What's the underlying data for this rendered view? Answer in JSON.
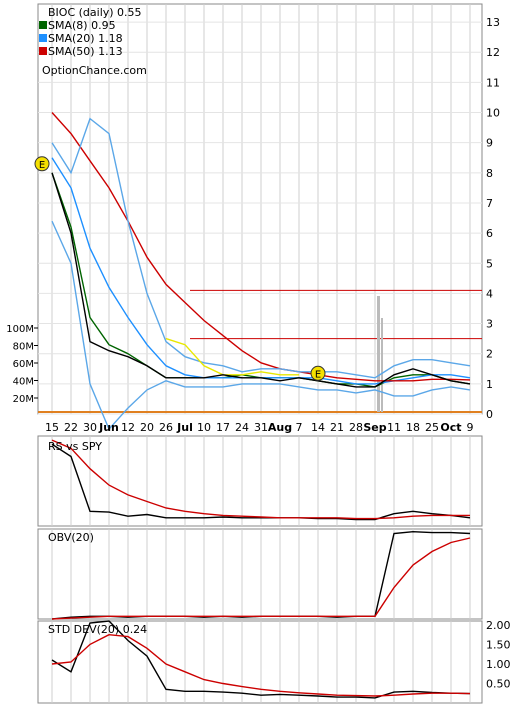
{
  "chart_data": [
    {
      "type": "line",
      "panel": "price",
      "legend_position": "top-left",
      "y_scale": "linear",
      "ylim": [
        0,
        13.6
      ],
      "grid": true,
      "title": "BIOC (daily) 0.55",
      "watermark": "OptionChance.com",
      "y_ticks": [
        "13",
        "12",
        "11",
        "10",
        "9",
        "8",
        "7",
        "6",
        "5",
        "4",
        "3",
        "2",
        "1",
        "0"
      ],
      "volume_ticks": [
        "100M",
        "80M",
        "60M",
        "40M",
        "20M"
      ],
      "x_ticks": [
        "15",
        "22",
        "30",
        "Jun",
        "12",
        "20",
        "26",
        "Jul",
        "10",
        "17",
        "24",
        "31",
        "Aug",
        "7",
        "14",
        "21",
        "28",
        "Sep",
        "11",
        "18",
        "25",
        "Oct",
        "9"
      ],
      "horizontal_levels": [
        4.1,
        2.5
      ],
      "event_markers": [
        {
          "label": "E",
          "x": "15",
          "y": 8.3
        },
        {
          "label": "E",
          "x": "14",
          "y": 1.35
        }
      ],
      "series": [
        {
          "name": "SMA(8) 0.95",
          "color": "#006400",
          "x": [
            "15",
            "22",
            "30",
            "Jun",
            "12",
            "20",
            "26",
            "Jul",
            "10",
            "17",
            "24",
            "31",
            "Aug",
            "7",
            "14",
            "21",
            "28",
            "Sep",
            "11",
            "18",
            "25",
            "Oct",
            "9"
          ],
          "values": [
            8.0,
            6.2,
            3.2,
            2.3,
            2.0,
            1.6,
            1.2,
            1.2,
            1.2,
            1.2,
            1.3,
            1.2,
            1.2,
            1.2,
            1.1,
            1.0,
            1.0,
            0.9,
            1.2,
            1.3,
            1.3,
            1.1,
            1.0
          ]
        },
        {
          "name": "SMA(20) 1.18",
          "color": "#1e90ff",
          "x": [
            "15",
            "22",
            "30",
            "Jun",
            "12",
            "20",
            "26",
            "Jul",
            "10",
            "17",
            "24",
            "31",
            "Aug",
            "7",
            "14",
            "21",
            "28",
            "Sep",
            "11",
            "18",
            "25",
            "Oct",
            "9"
          ],
          "values": [
            8.5,
            7.5,
            5.5,
            4.2,
            3.2,
            2.3,
            1.6,
            1.3,
            1.2,
            1.2,
            1.2,
            1.2,
            1.2,
            1.2,
            1.2,
            1.1,
            1.0,
            1.0,
            1.1,
            1.2,
            1.3,
            1.3,
            1.2
          ]
        },
        {
          "name": "SMA(50) 1.13",
          "color": "#cc0000",
          "x": [
            "15",
            "22",
            "30",
            "Jun",
            "12",
            "20",
            "26",
            "Jul",
            "10",
            "17",
            "24",
            "31",
            "Aug",
            "7",
            "14",
            "21",
            "28",
            "Sep",
            "11",
            "18",
            "25",
            "Oct",
            "9"
          ],
          "values": [
            10.0,
            9.3,
            8.4,
            7.5,
            6.4,
            5.2,
            4.3,
            3.7,
            3.1,
            2.6,
            2.1,
            1.7,
            1.5,
            1.4,
            1.3,
            1.2,
            1.15,
            1.1,
            1.1,
            1.1,
            1.15,
            1.15,
            1.13
          ]
        },
        {
          "name": "",
          "color": "#5ba7e8",
          "x": [
            "15",
            "22",
            "30",
            "Jun",
            "12",
            "20",
            "26",
            "Jul",
            "10",
            "17",
            "24",
            "31",
            "Aug",
            "7",
            "14",
            "21",
            "28",
            "Sep",
            "11",
            "18",
            "25",
            "Oct",
            "9"
          ],
          "values": [
            9.0,
            8.0,
            9.8,
            9.3,
            6.4,
            4.0,
            2.4,
            1.9,
            1.7,
            1.6,
            1.4,
            1.5,
            1.5,
            1.4,
            1.4,
            1.4,
            1.3,
            1.2,
            1.6,
            1.8,
            1.8,
            1.7,
            1.6
          ]
        },
        {
          "name": "",
          "color": "#5ba7e8",
          "x": [
            "15",
            "22",
            "30",
            "Jun",
            "12",
            "20",
            "26",
            "Jul",
            "10",
            "17",
            "24",
            "31",
            "Aug",
            "7",
            "14",
            "21",
            "28",
            "Sep",
            "11",
            "18",
            "25",
            "Oct",
            "9"
          ],
          "values": [
            6.4,
            5.0,
            1.0,
            -0.5,
            0.2,
            0.8,
            1.1,
            0.9,
            0.9,
            0.9,
            1.0,
            1.0,
            1.0,
            0.9,
            0.8,
            0.8,
            0.7,
            0.8,
            0.6,
            0.6,
            0.8,
            0.9,
            0.8
          ]
        },
        {
          "name": "",
          "color": "#e8e800",
          "x": [
            "26",
            "Jul",
            "10",
            "17",
            "24",
            "31",
            "Aug",
            "7"
          ],
          "values": [
            2.5,
            2.3,
            1.6,
            1.3,
            1.3,
            1.4,
            1.3,
            1.3
          ]
        },
        {
          "name": "",
          "color": "#000000",
          "x": [
            "15",
            "22",
            "30",
            "Jun",
            "12",
            "20",
            "26",
            "Jul",
            "10",
            "17",
            "24",
            "31",
            "Aug",
            "7",
            "14",
            "21",
            "28",
            "Sep",
            "11",
            "18",
            "25",
            "Oct",
            "9"
          ],
          "values": [
            8.0,
            6.0,
            2.4,
            2.1,
            1.9,
            1.6,
            1.2,
            1.2,
            1.2,
            1.3,
            1.2,
            1.2,
            1.1,
            1.2,
            1.1,
            1.0,
            0.9,
            0.9,
            1.3,
            1.5,
            1.3,
            1.1,
            1.0
          ]
        }
      ]
    },
    {
      "type": "line",
      "panel": "rs",
      "grid": true,
      "legend_position": "top-left",
      "legend": "RS vs SPY",
      "series": [
        {
          "name": "",
          "color": "#000000",
          "x": [
            "15",
            "22",
            "30",
            "Jun",
            "12",
            "20",
            "26",
            "Jul",
            "10",
            "17",
            "24",
            "31",
            "Aug",
            "7",
            "14",
            "21",
            "28",
            "Sep",
            "11",
            "18",
            "25",
            "Oct",
            "9"
          ],
          "values": [
            1.0,
            0.85,
            0.18,
            0.17,
            0.12,
            0.14,
            0.1,
            0.1,
            0.1,
            0.11,
            0.1,
            0.1,
            0.1,
            0.1,
            0.09,
            0.09,
            0.08,
            0.08,
            0.15,
            0.18,
            0.15,
            0.13,
            0.1
          ]
        },
        {
          "name": "",
          "color": "#cc0000",
          "x": [
            "15",
            "22",
            "30",
            "Jun",
            "12",
            "20",
            "26",
            "Jul",
            "10",
            "17",
            "24",
            "31",
            "Aug",
            "7",
            "14",
            "21",
            "28",
            "Sep",
            "11",
            "18",
            "25",
            "Oct",
            "9"
          ],
          "values": [
            1.05,
            0.95,
            0.7,
            0.5,
            0.38,
            0.3,
            0.22,
            0.18,
            0.15,
            0.13,
            0.12,
            0.11,
            0.1,
            0.1,
            0.1,
            0.1,
            0.09,
            0.09,
            0.1,
            0.12,
            0.13,
            0.13,
            0.13
          ]
        }
      ],
      "ylim": [
        0,
        1.1
      ]
    },
    {
      "type": "line",
      "panel": "obv",
      "grid": true,
      "legend_position": "top-left",
      "legend": "OBV(20)",
      "series": [
        {
          "name": "",
          "color": "#000000",
          "x": [
            "15",
            "22",
            "30",
            "Jun",
            "12",
            "20",
            "26",
            "Jul",
            "10",
            "17",
            "24",
            "31",
            "Aug",
            "7",
            "14",
            "21",
            "28",
            "Sep",
            "11",
            "18",
            "25",
            "Oct",
            "9"
          ],
          "values": [
            0.0,
            0.02,
            0.03,
            0.03,
            0.02,
            0.03,
            0.03,
            0.03,
            0.02,
            0.03,
            0.02,
            0.03,
            0.03,
            0.03,
            0.03,
            0.02,
            0.03,
            0.03,
            0.95,
            0.97,
            0.96,
            0.96,
            0.95
          ]
        },
        {
          "name": "",
          "color": "#cc0000",
          "x": [
            "15",
            "22",
            "30",
            "Jun",
            "12",
            "20",
            "26",
            "Jul",
            "10",
            "17",
            "24",
            "31",
            "Aug",
            "7",
            "14",
            "21",
            "28",
            "Sep",
            "11",
            "18",
            "25",
            "Oct",
            "9"
          ],
          "values": [
            0.0,
            0.01,
            0.02,
            0.03,
            0.03,
            0.03,
            0.03,
            0.03,
            0.03,
            0.03,
            0.03,
            0.03,
            0.03,
            0.03,
            0.03,
            0.03,
            0.03,
            0.03,
            0.35,
            0.6,
            0.75,
            0.85,
            0.9
          ]
        }
      ],
      "ylim": [
        0,
        1.0
      ]
    },
    {
      "type": "line",
      "panel": "std",
      "grid": true,
      "legend_position": "top-left",
      "legend": "STD DEV(20) 0.24",
      "y_ticks": [
        "2.00",
        "1.50",
        "1.00",
        "0.50"
      ],
      "ylim": [
        0,
        2.1
      ],
      "series": [
        {
          "name": "",
          "color": "#000000",
          "x": [
            "15",
            "22",
            "30",
            "Jun",
            "12",
            "20",
            "26",
            "Jul",
            "10",
            "17",
            "24",
            "31",
            "Aug",
            "7",
            "14",
            "21",
            "28",
            "Sep",
            "11",
            "18",
            "25",
            "Oct",
            "9"
          ],
          "values": [
            1.1,
            0.8,
            2.05,
            2.1,
            1.6,
            1.2,
            0.35,
            0.3,
            0.3,
            0.28,
            0.25,
            0.2,
            0.22,
            0.2,
            0.18,
            0.15,
            0.15,
            0.13,
            0.28,
            0.3,
            0.27,
            0.25,
            0.24
          ]
        },
        {
          "name": "",
          "color": "#cc0000",
          "x": [
            "15",
            "22",
            "30",
            "Jun",
            "12",
            "20",
            "26",
            "Jul",
            "10",
            "17",
            "24",
            "31",
            "Aug",
            "7",
            "14",
            "21",
            "28",
            "Sep",
            "11",
            "18",
            "25",
            "Oct",
            "9"
          ],
          "values": [
            1.0,
            1.05,
            1.5,
            1.75,
            1.7,
            1.4,
            1.0,
            0.8,
            0.6,
            0.5,
            0.42,
            0.35,
            0.3,
            0.26,
            0.23,
            0.2,
            0.19,
            0.18,
            0.2,
            0.23,
            0.25,
            0.25,
            0.24
          ]
        }
      ]
    }
  ]
}
